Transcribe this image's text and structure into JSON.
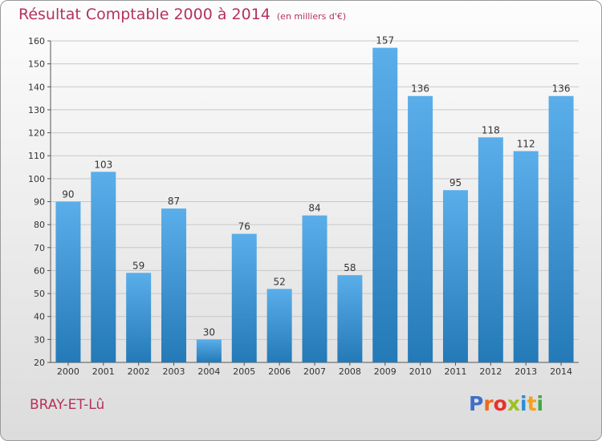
{
  "title": "Résultat Comptable 2000 à 2014",
  "subtitle": "(en milliers d'€)",
  "commune": "BRAY-ET-Lû",
  "logo": {
    "letters": [
      {
        "char": "P",
        "color": "#3f6fc7"
      },
      {
        "char": "r",
        "color": "#ee6a1c"
      },
      {
        "char": "o",
        "color": "#e5332a"
      },
      {
        "char": "x",
        "color": "#9bc11d"
      },
      {
        "char": "i",
        "color": "#2a8fd2"
      },
      {
        "char": "t",
        "color": "#f3a21b"
      },
      {
        "char": "i",
        "color": "#41a844"
      }
    ]
  },
  "chart_data": {
    "type": "bar",
    "categories": [
      "2000",
      "2001",
      "2002",
      "2003",
      "2004",
      "2005",
      "2006",
      "2007",
      "2008",
      "2009",
      "2010",
      "2011",
      "2012",
      "2013",
      "2014"
    ],
    "values": [
      90,
      103,
      59,
      87,
      30,
      76,
      52,
      84,
      58,
      157,
      136,
      95,
      118,
      112,
      136
    ],
    "ylim": [
      20,
      160
    ],
    "yticks": [
      20,
      30,
      40,
      50,
      60,
      70,
      80,
      90,
      100,
      110,
      120,
      130,
      140,
      150,
      160
    ],
    "grid": true,
    "bar_color_top": "#5aaeea",
    "bar_color_bottom": "#2479b7",
    "grid_color": "#c8c8c8",
    "label_color": "#333333"
  }
}
